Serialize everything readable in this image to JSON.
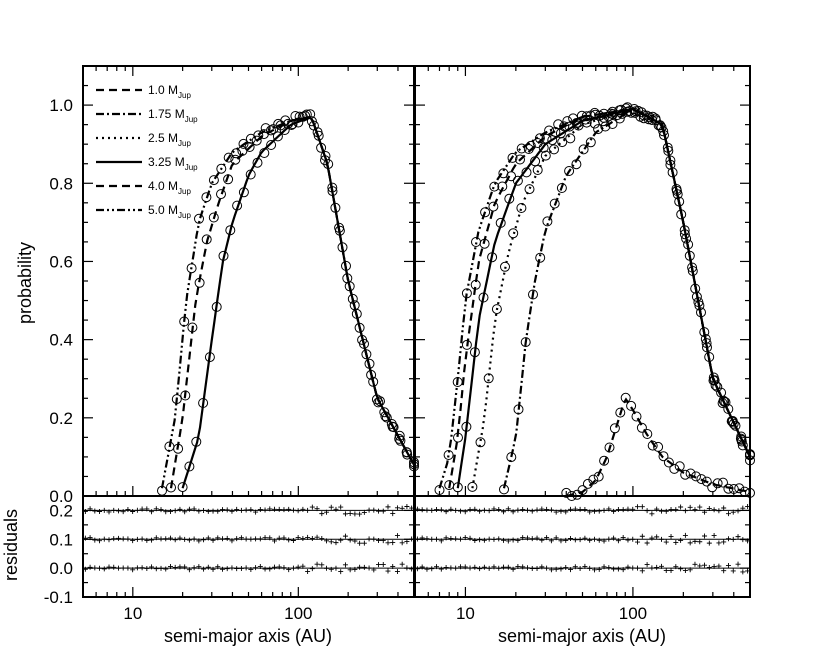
{
  "chart_data": {
    "type": "scatter",
    "ylabel": "probability",
    "residual_ylabel": "residuals",
    "xlabel": "semi-major axis (AU)",
    "x_scale": "log",
    "xlim": [
      5,
      500
    ],
    "ylim": [
      0.0,
      1.1
    ],
    "residual_ylim": [
      -0.1,
      0.25
    ],
    "xtick_labels": [
      "10",
      "100"
    ],
    "ytick_labels": [
      "0.0",
      "0.2",
      "0.4",
      "0.6",
      "0.8",
      "1.0"
    ],
    "residual_tick_labels": [
      "-0.1",
      "0.0",
      "0.1",
      "0.2"
    ],
    "legend": {
      "position": "top-left",
      "entries": [
        {
          "mass": "1.0",
          "unit": "M",
          "sub": "Jup",
          "dash": "8,5"
        },
        {
          "mass": "1.75",
          "unit": "M",
          "sub": "Jup",
          "dash": "8,3,2,3"
        },
        {
          "mass": "2.5",
          "unit": "M",
          "sub": "Jup",
          "dash": "2,4"
        },
        {
          "mass": "3.25",
          "unit": "M",
          "sub": "Jup",
          "dash": ""
        },
        {
          "mass": "4.0",
          "unit": "M",
          "sub": "Jup",
          "dash": "8,5"
        },
        {
          "mass": "5.0",
          "unit": "M",
          "sub": "Jup",
          "dash": "8,3,2,3,2,3"
        }
      ]
    },
    "panels": [
      {
        "name": "left",
        "series": [
          {
            "dash": "8,3,2,3,2,3",
            "x": [
              15,
              18,
              21,
              25,
              30,
              40,
              60,
              90,
              120,
              150,
              200,
              300,
              500
            ],
            "y": [
              0.02,
              0.2,
              0.5,
              0.7,
              0.8,
              0.88,
              0.93,
              0.96,
              0.97,
              0.85,
              0.55,
              0.25,
              0.08
            ]
          },
          {
            "dash": "8,5",
            "x": [
              17,
              20,
              24,
              28,
              33,
              40,
              60,
              90,
              120,
              150,
              200,
              300,
              500
            ],
            "y": [
              0.02,
              0.2,
              0.5,
              0.65,
              0.75,
              0.85,
              0.92,
              0.96,
              0.97,
              0.85,
              0.55,
              0.25,
              0.08
            ]
          },
          {
            "dash": "",
            "x": [
              20,
              25,
              30,
              35,
              40,
              50,
              60,
              90,
              120,
              150,
              200,
              300,
              500
            ],
            "y": [
              0.02,
              0.15,
              0.4,
              0.6,
              0.7,
              0.82,
              0.88,
              0.95,
              0.97,
              0.85,
              0.55,
              0.25,
              0.08
            ]
          }
        ],
        "residual_offsets": [
          0.0,
          0.1,
          0.2
        ]
      },
      {
        "name": "right",
        "series": [
          {
            "dash": "8,3,2,3,2,3",
            "x": [
              7,
              8,
              9,
              10,
              12,
              15,
              20,
              30,
              50,
              100,
              150,
              200,
              300,
              500
            ],
            "y": [
              0.02,
              0.1,
              0.3,
              0.5,
              0.68,
              0.8,
              0.88,
              0.93,
              0.97,
              0.99,
              0.95,
              0.7,
              0.3,
              0.1
            ]
          },
          {
            "dash": "8,5",
            "x": [
              8,
              9,
              10,
              12,
              15,
              20,
              30,
              50,
              100,
              150,
              200,
              300,
              500
            ],
            "y": [
              0.02,
              0.15,
              0.35,
              0.6,
              0.75,
              0.85,
              0.92,
              0.97,
              0.99,
              0.95,
              0.7,
              0.3,
              0.1
            ]
          },
          {
            "dash": "",
            "x": [
              9,
              10,
              12,
              15,
              20,
              30,
              50,
              100,
              150,
              200,
              300,
              500
            ],
            "y": [
              0.02,
              0.15,
              0.45,
              0.65,
              0.8,
              0.9,
              0.96,
              0.99,
              0.95,
              0.7,
              0.3,
              0.1
            ]
          },
          {
            "dash": "2,4",
            "x": [
              11,
              13,
              15,
              18,
              22,
              30,
              50,
              100,
              150,
              200,
              300,
              500
            ],
            "y": [
              0.02,
              0.2,
              0.45,
              0.62,
              0.75,
              0.87,
              0.95,
              0.99,
              0.95,
              0.7,
              0.3,
              0.1
            ]
          },
          {
            "dash": "8,3,2,3",
            "x": [
              17,
              20,
              23,
              26,
              30,
              40,
              60,
              100,
              150,
              200,
              300,
              500
            ],
            "y": [
              0.02,
              0.15,
              0.4,
              0.55,
              0.68,
              0.82,
              0.93,
              0.99,
              0.95,
              0.7,
              0.3,
              0.1
            ]
          },
          {
            "dash": "8,5",
            "x": [
              40,
              50,
              60,
              70,
              80,
              90,
              100,
              120,
              150,
              200,
              300,
              500
            ],
            "y": [
              0.0,
              0.01,
              0.04,
              0.1,
              0.18,
              0.25,
              0.22,
              0.16,
              0.1,
              0.06,
              0.03,
              0.01
            ]
          }
        ],
        "residual_offsets": [
          0.0,
          0.1,
          0.2
        ]
      }
    ]
  }
}
